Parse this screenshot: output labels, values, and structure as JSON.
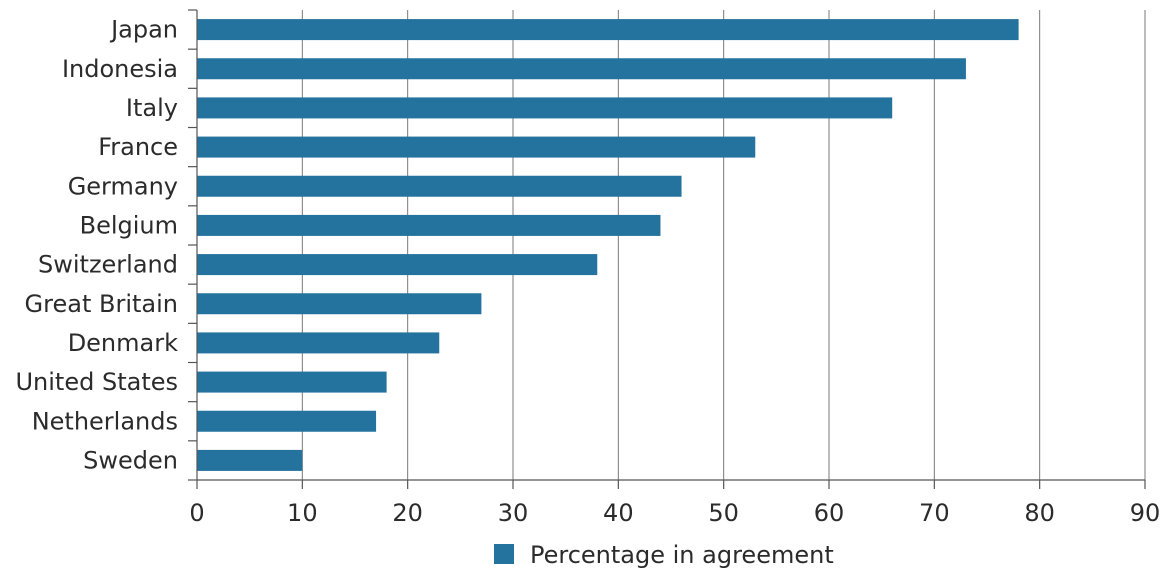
{
  "chart_data": {
    "type": "bar",
    "orientation": "horizontal",
    "title": "",
    "xlabel": "",
    "ylabel": "",
    "xlim": [
      0,
      90
    ],
    "x_ticks": [
      "0",
      "10",
      "20",
      "30",
      "40",
      "50",
      "60",
      "70",
      "80",
      "90"
    ],
    "grid": "vertical",
    "legend_position": "bottom-center",
    "categories": [
      "Japan",
      "Indonesia",
      "Italy",
      "France",
      "Germany",
      "Belgium",
      "Switzerland",
      "Great Britain",
      "Denmark",
      "United States",
      "Netherlands",
      "Sweden"
    ],
    "series": [
      {
        "name": "Percentage in agreement",
        "color": "#24739f",
        "values": [
          78,
          73,
          66,
          53,
          46,
          44,
          38,
          27,
          23,
          18,
          17,
          10
        ]
      }
    ]
  }
}
